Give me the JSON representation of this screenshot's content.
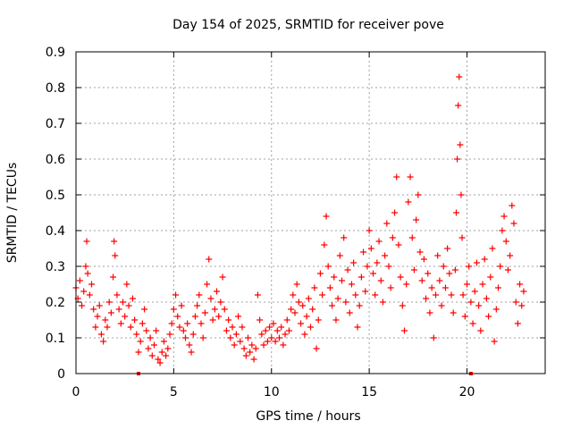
{
  "chart_data": {
    "type": "scatter",
    "title": "Day 154 of 2025, SRMTID for receiver pove",
    "xlabel": "GPS time / hours",
    "ylabel": "SRMTID / TECUs",
    "xlim": [
      0,
      24
    ],
    "ylim": [
      0,
      0.9
    ],
    "xticks": [
      0,
      5,
      10,
      15,
      20
    ],
    "yticks": [
      0,
      0.1,
      0.2,
      0.3,
      0.4,
      0.5,
      0.6,
      0.7,
      0.8,
      0.9
    ],
    "xtick_labels": [
      "0",
      "5",
      "10",
      "15",
      "20"
    ],
    "ytick_labels": [
      "0",
      "0.1",
      "0.2",
      "0.3",
      "0.4",
      "0.5",
      "0.6",
      "0.7",
      "0.8",
      "0.9"
    ],
    "grid": true,
    "marker": "+",
    "color": "#ff0000",
    "series": [
      {
        "name": "SRMTID",
        "points": [
          [
            0.0,
            0.24
          ],
          [
            0.1,
            0.21
          ],
          [
            0.2,
            0.26
          ],
          [
            0.3,
            0.19
          ],
          [
            0.4,
            0.23
          ],
          [
            0.5,
            0.3
          ],
          [
            0.55,
            0.37
          ],
          [
            0.6,
            0.28
          ],
          [
            0.7,
            0.22
          ],
          [
            0.8,
            0.25
          ],
          [
            0.9,
            0.18
          ],
          [
            1.0,
            0.13
          ],
          [
            1.1,
            0.16
          ],
          [
            1.2,
            0.19
          ],
          [
            1.3,
            0.11
          ],
          [
            1.4,
            0.09
          ],
          [
            1.5,
            0.15
          ],
          [
            1.6,
            0.13
          ],
          [
            1.7,
            0.2
          ],
          [
            1.8,
            0.17
          ],
          [
            1.9,
            0.27
          ],
          [
            1.95,
            0.37
          ],
          [
            2.0,
            0.33
          ],
          [
            2.1,
            0.22
          ],
          [
            2.2,
            0.18
          ],
          [
            2.3,
            0.14
          ],
          [
            2.4,
            0.2
          ],
          [
            2.5,
            0.16
          ],
          [
            2.6,
            0.25
          ],
          [
            2.7,
            0.19
          ],
          [
            2.8,
            0.13
          ],
          [
            2.9,
            0.21
          ],
          [
            3.0,
            0.15
          ],
          [
            3.1,
            0.11
          ],
          [
            3.2,
            0.06
          ],
          [
            3.3,
            0.09
          ],
          [
            3.4,
            0.14
          ],
          [
            3.5,
            0.18
          ],
          [
            3.6,
            0.12
          ],
          [
            3.7,
            0.07
          ],
          [
            3.8,
            0.1
          ],
          [
            3.9,
            0.05
          ],
          [
            4.0,
            0.08
          ],
          [
            4.1,
            0.12
          ],
          [
            4.2,
            0.04
          ],
          [
            4.3,
            0.03
          ],
          [
            4.4,
            0.06
          ],
          [
            4.5,
            0.09
          ],
          [
            4.6,
            0.05
          ],
          [
            4.7,
            0.07
          ],
          [
            4.8,
            0.11
          ],
          [
            4.9,
            0.14
          ],
          [
            5.0,
            0.18
          ],
          [
            5.1,
            0.22
          ],
          [
            5.2,
            0.16
          ],
          [
            5.3,
            0.13
          ],
          [
            5.4,
            0.19
          ],
          [
            5.5,
            0.12
          ],
          [
            5.6,
            0.1
          ],
          [
            5.7,
            0.14
          ],
          [
            5.8,
            0.08
          ],
          [
            5.9,
            0.06
          ],
          [
            6.0,
            0.11
          ],
          [
            6.1,
            0.16
          ],
          [
            6.2,
            0.19
          ],
          [
            6.3,
            0.22
          ],
          [
            6.4,
            0.14
          ],
          [
            6.5,
            0.1
          ],
          [
            6.6,
            0.17
          ],
          [
            6.7,
            0.25
          ],
          [
            6.8,
            0.32
          ],
          [
            6.9,
            0.21
          ],
          [
            7.0,
            0.15
          ],
          [
            7.1,
            0.18
          ],
          [
            7.2,
            0.23
          ],
          [
            7.3,
            0.16
          ],
          [
            7.4,
            0.2
          ],
          [
            7.5,
            0.27
          ],
          [
            7.6,
            0.18
          ],
          [
            7.7,
            0.12
          ],
          [
            7.8,
            0.15
          ],
          [
            7.9,
            0.1
          ],
          [
            8.0,
            0.13
          ],
          [
            8.1,
            0.08
          ],
          [
            8.2,
            0.11
          ],
          [
            8.3,
            0.16
          ],
          [
            8.4,
            0.09
          ],
          [
            8.5,
            0.13
          ],
          [
            8.6,
            0.07
          ],
          [
            8.7,
            0.05
          ],
          [
            8.8,
            0.1
          ],
          [
            8.9,
            0.06
          ],
          [
            9.0,
            0.08
          ],
          [
            9.1,
            0.04
          ],
          [
            9.2,
            0.07
          ],
          [
            9.3,
            0.22
          ],
          [
            9.4,
            0.15
          ],
          [
            9.5,
            0.11
          ],
          [
            9.6,
            0.08
          ],
          [
            9.7,
            0.12
          ],
          [
            9.8,
            0.09
          ],
          [
            9.9,
            0.13
          ],
          [
            10.0,
            0.1
          ],
          [
            10.1,
            0.14
          ],
          [
            10.2,
            0.09
          ],
          [
            10.3,
            0.12
          ],
          [
            10.4,
            0.1
          ],
          [
            10.5,
            0.13
          ],
          [
            10.6,
            0.08
          ],
          [
            10.7,
            0.11
          ],
          [
            10.8,
            0.15
          ],
          [
            10.9,
            0.12
          ],
          [
            11.0,
            0.18
          ],
          [
            11.1,
            0.22
          ],
          [
            11.2,
            0.17
          ],
          [
            11.3,
            0.25
          ],
          [
            11.4,
            0.2
          ],
          [
            11.5,
            0.14
          ],
          [
            11.6,
            0.19
          ],
          [
            11.7,
            0.11
          ],
          [
            11.8,
            0.16
          ],
          [
            11.9,
            0.21
          ],
          [
            12.0,
            0.13
          ],
          [
            12.1,
            0.18
          ],
          [
            12.2,
            0.24
          ],
          [
            12.3,
            0.07
          ],
          [
            12.4,
            0.15
          ],
          [
            12.5,
            0.28
          ],
          [
            12.6,
            0.22
          ],
          [
            12.7,
            0.36
          ],
          [
            12.8,
            0.44
          ],
          [
            12.9,
            0.3
          ],
          [
            13.0,
            0.24
          ],
          [
            13.1,
            0.19
          ],
          [
            13.2,
            0.27
          ],
          [
            13.3,
            0.15
          ],
          [
            13.4,
            0.21
          ],
          [
            13.5,
            0.33
          ],
          [
            13.6,
            0.26
          ],
          [
            13.7,
            0.38
          ],
          [
            13.8,
            0.2
          ],
          [
            13.9,
            0.29
          ],
          [
            14.0,
            0.17
          ],
          [
            14.1,
            0.25
          ],
          [
            14.2,
            0.31
          ],
          [
            14.3,
            0.22
          ],
          [
            14.4,
            0.13
          ],
          [
            14.5,
            0.19
          ],
          [
            14.6,
            0.27
          ],
          [
            14.7,
            0.34
          ],
          [
            14.8,
            0.23
          ],
          [
            14.9,
            0.3
          ],
          [
            15.0,
            0.4
          ],
          [
            15.1,
            0.35
          ],
          [
            15.2,
            0.28
          ],
          [
            15.3,
            0.22
          ],
          [
            15.4,
            0.31
          ],
          [
            15.5,
            0.37
          ],
          [
            15.6,
            0.26
          ],
          [
            15.7,
            0.2
          ],
          [
            15.8,
            0.33
          ],
          [
            15.9,
            0.42
          ],
          [
            16.0,
            0.3
          ],
          [
            16.1,
            0.24
          ],
          [
            16.2,
            0.38
          ],
          [
            16.3,
            0.45
          ],
          [
            16.4,
            0.55
          ],
          [
            16.5,
            0.36
          ],
          [
            16.6,
            0.27
          ],
          [
            16.7,
            0.19
          ],
          [
            16.8,
            0.12
          ],
          [
            16.9,
            0.25
          ],
          [
            17.0,
            0.48
          ],
          [
            17.1,
            0.55
          ],
          [
            17.2,
            0.38
          ],
          [
            17.3,
            0.29
          ],
          [
            17.4,
            0.43
          ],
          [
            17.5,
            0.5
          ],
          [
            17.6,
            0.34
          ],
          [
            17.7,
            0.26
          ],
          [
            17.8,
            0.32
          ],
          [
            17.9,
            0.21
          ],
          [
            18.0,
            0.28
          ],
          [
            18.1,
            0.17
          ],
          [
            18.2,
            0.24
          ],
          [
            18.3,
            0.1
          ],
          [
            18.4,
            0.22
          ],
          [
            18.5,
            0.33
          ],
          [
            18.6,
            0.26
          ],
          [
            18.7,
            0.19
          ],
          [
            18.8,
            0.3
          ],
          [
            18.9,
            0.24
          ],
          [
            19.0,
            0.35
          ],
          [
            19.1,
            0.28
          ],
          [
            19.2,
            0.22
          ],
          [
            19.3,
            0.17
          ],
          [
            19.4,
            0.29
          ],
          [
            19.45,
            0.45
          ],
          [
            19.5,
            0.6
          ],
          [
            19.55,
            0.75
          ],
          [
            19.6,
            0.83
          ],
          [
            19.65,
            0.64
          ],
          [
            19.7,
            0.5
          ],
          [
            19.75,
            0.38
          ],
          [
            19.8,
            0.22
          ],
          [
            19.9,
            0.16
          ],
          [
            20.0,
            0.25
          ],
          [
            20.1,
            0.3
          ],
          [
            20.2,
            0.2
          ],
          [
            20.3,
            0.14
          ],
          [
            20.4,
            0.23
          ],
          [
            20.5,
            0.31
          ],
          [
            20.6,
            0.19
          ],
          [
            20.7,
            0.12
          ],
          [
            20.8,
            0.25
          ],
          [
            20.9,
            0.32
          ],
          [
            21.0,
            0.21
          ],
          [
            21.1,
            0.16
          ],
          [
            21.2,
            0.27
          ],
          [
            21.3,
            0.35
          ],
          [
            21.4,
            0.09
          ],
          [
            21.5,
            0.18
          ],
          [
            21.6,
            0.24
          ],
          [
            21.7,
            0.3
          ],
          [
            21.8,
            0.4
          ],
          [
            21.9,
            0.44
          ],
          [
            22.0,
            0.37
          ],
          [
            22.1,
            0.29
          ],
          [
            22.2,
            0.33
          ],
          [
            22.3,
            0.47
          ],
          [
            22.4,
            0.42
          ],
          [
            22.5,
            0.2
          ],
          [
            22.6,
            0.14
          ],
          [
            22.7,
            0.25
          ],
          [
            22.8,
            0.19
          ],
          [
            22.9,
            0.23
          ]
        ]
      }
    ],
    "baseline_markers": [
      [
        3.2,
        0.0
      ],
      [
        20.2,
        0.0
      ]
    ]
  }
}
